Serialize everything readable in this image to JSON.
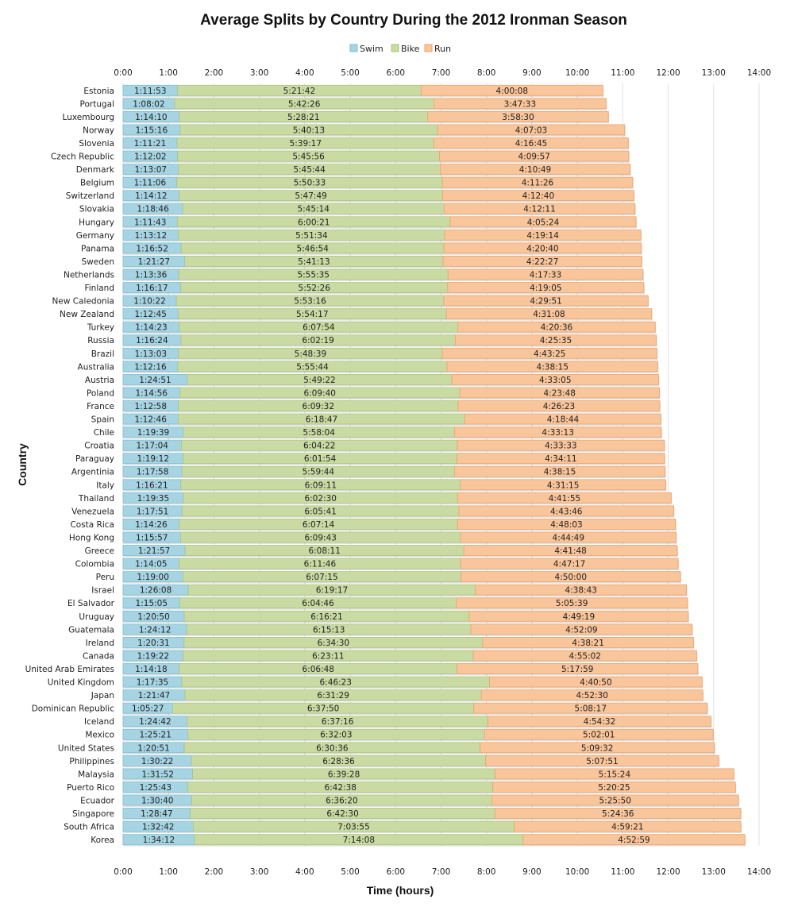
{
  "chart_data": {
    "type": "bar",
    "orientation": "horizontal",
    "stacked": true,
    "title": "Average Splits by Country During the 2012 Ironman Season",
    "xlabel": "Time (hours)",
    "ylabel": "Country",
    "xlim": [
      0,
      14
    ],
    "x_ticks": [
      "0:00",
      "1:00",
      "2:00",
      "3:00",
      "4:00",
      "5:00",
      "6:00",
      "7:00",
      "8:00",
      "9:00",
      "10:00",
      "11:00",
      "12:00",
      "13:00",
      "14:00"
    ],
    "x_ticks_top": true,
    "x_ticks_bottom": true,
    "grid": "vertical",
    "legend": {
      "placement": "top-center",
      "entries": [
        "Swim",
        "Bike",
        "Run"
      ]
    },
    "colors": {
      "Swim": "#a6d4e3",
      "Bike": "#c9dba3",
      "Run": "#f9c59a",
      "Swim_edge": "#7fbfd3",
      "Bike_edge": "#abc57e",
      "Run_edge": "#eea36d"
    },
    "categories": [
      "Estonia",
      "Portugal",
      "Luxembourg",
      "Norway",
      "Slovenia",
      "Czech Republic",
      "Denmark",
      "Belgium",
      "Switzerland",
      "Slovakia",
      "Hungary",
      "Germany",
      "Panama",
      "Sweden",
      "Netherlands",
      "Finland",
      "New Caledonia",
      "New Zealand",
      "Turkey",
      "Russia",
      "Brazil",
      "Australia",
      "Austria",
      "Poland",
      "France",
      "Spain",
      "Chile",
      "Croatia",
      "Paraguay",
      "Argentinia",
      "Italy",
      "Thailand",
      "Venezuela",
      "Costa Rica",
      "Hong Kong",
      "Greece",
      "Colombia",
      "Peru",
      "Israel",
      "El Salvador",
      "Uruguay",
      "Guatemala",
      "Ireland",
      "Canada",
      "United Arab Emirates",
      "United Kingdom",
      "Japan",
      "Dominican Republic",
      "Iceland",
      "Mexico",
      "United States",
      "Philippines",
      "Malaysia",
      "Puerto Rico",
      "Ecuador",
      "Singapore",
      "South Africa",
      "Korea"
    ],
    "series": [
      {
        "name": "Swim",
        "values": [
          "1:11:53",
          "1:08:02",
          "1:14:10",
          "1:15:16",
          "1:11:21",
          "1:12:02",
          "1:13:07",
          "1:11:06",
          "1:14:12",
          "1:18:46",
          "1:11:43",
          "1:13:12",
          "1:16:52",
          "1:21:27",
          "1:13:36",
          "1:16:17",
          "1:10:22",
          "1:12:45",
          "1:14:23",
          "1:16:24",
          "1:13:03",
          "1:12:16",
          "1:24:51",
          "1:14:56",
          "1:12:58",
          "1:12:46",
          "1:19:39",
          "1:17:04",
          "1:19:12",
          "1:17:58",
          "1:16:21",
          "1:19:35",
          "1:17:51",
          "1:14:26",
          "1:15:57",
          "1:21:57",
          "1:14:05",
          "1:19:00",
          "1:26:08",
          "1:15:05",
          "1:20:50",
          "1:24:12",
          "1:20:31",
          "1:19:22",
          "1:14:18",
          "1:17:35",
          "1:21:47",
          "1:05:27",
          "1:24:42",
          "1:25:21",
          "1:20:51",
          "1:30:22",
          "1:31:52",
          "1:25:43",
          "1:30:40",
          "1:28:47",
          "1:32:42",
          "1:34:12"
        ]
      },
      {
        "name": "Bike",
        "values": [
          "5:21:42",
          "5:42:26",
          "5:28:21",
          "5:40:13",
          "5:39:17",
          "5:45:56",
          "5:45:44",
          "5:50:33",
          "5:47:49",
          "5:45:14",
          "6:00:21",
          "5:51:34",
          "5:46:54",
          "5:41:13",
          "5:55:35",
          "5:52:26",
          "5:53:16",
          "5:54:17",
          "6:07:54",
          "6:02:19",
          "5:48:39",
          "5:55:44",
          "5:49:22",
          "6:09:40",
          "6:09:32",
          "6:18:47",
          "5:58:04",
          "6:04:22",
          "6:01:54",
          "5:59:44",
          "6:09:11",
          "6:02:30",
          "6:05:41",
          "6:07:14",
          "6:09:43",
          "6:08:11",
          "6:11:46",
          "6:07:15",
          "6:19:17",
          "6:04:46",
          "6:16:21",
          "6:15:13",
          "6:34:30",
          "6:23:11",
          "6:06:48",
          "6:46:23",
          "6:31:29",
          "6:37:50",
          "6:37:16",
          "6:32:03",
          "6:30:36",
          "6:28:36",
          "6:39:28",
          "6:42:38",
          "6:36:20",
          "6:42:30",
          "7:03:55",
          "7:14:08"
        ]
      },
      {
        "name": "Run",
        "values": [
          "4:00:08",
          "3:47:33",
          "3:58:30",
          "4:07:03",
          "4:16:45",
          "4:09:57",
          "4:10:49",
          "4:11:26",
          "4:12:40",
          "4:12:11",
          "4:05:24",
          "4:19:14",
          "4:20:40",
          "4:22:27",
          "4:17:33",
          "4:19:05",
          "4:29:51",
          "4:31:08",
          "4:20:36",
          "4:25:35",
          "4:43:25",
          "4:38:15",
          "4:33:05",
          "4:23:48",
          "4:26:23",
          "4:18:44",
          "4:33:13",
          "4:33:33",
          "4:34:11",
          "4:38:15",
          "4:31:15",
          "4:41:55",
          "4:43:46",
          "4:48:03",
          "4:44:49",
          "4:41:48",
          "4:47:17",
          "4:50:00",
          "4:38:43",
          "5:05:39",
          "4:49:19",
          "4:52:09",
          "4:38:21",
          "4:55:02",
          "5:17:59",
          "4:40:50",
          "4:52:30",
          "5:08:17",
          "4:54:32",
          "5:02:01",
          "5:09:32",
          "5:07:51",
          "5:15:24",
          "5:20:25",
          "5:25:50",
          "5:24:36",
          "4:59:21",
          "4:52:59"
        ]
      }
    ]
  }
}
